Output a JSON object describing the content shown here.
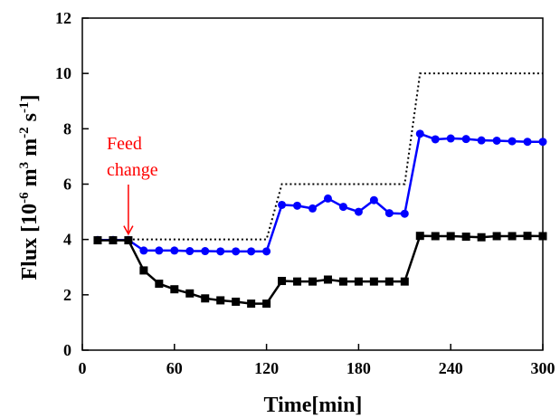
{
  "chart_data": {
    "type": "line",
    "xlabel": "Time[min]",
    "ylabel": {
      "prefix": "Flux [10",
      "exp1": "-6",
      "mid1": " m",
      "exp2": "3",
      "mid2": " m",
      "exp3": "-2",
      "mid3": " s",
      "exp4": "-1",
      "suffix": "]"
    },
    "xlim": [
      0,
      300
    ],
    "ylim": [
      0,
      12
    ],
    "xticks": [
      "0",
      "60",
      "120",
      "180",
      "240",
      "300"
    ],
    "yticks": [
      "0",
      "2",
      "4",
      "6",
      "8",
      "10",
      "12"
    ],
    "grid": false,
    "legend": "none",
    "annotations": [
      {
        "lines": [
          "Feed",
          "change"
        ],
        "color": "#ff0000",
        "arrow_to": {
          "x": 30,
          "y": 4.0
        }
      }
    ],
    "series": [
      {
        "style": "dotted",
        "color": "#000000",
        "marker": "none",
        "x": [
          30,
          120,
          130,
          210,
          220,
          300
        ],
        "y": [
          4,
          4,
          6,
          6,
          10,
          10
        ]
      },
      {
        "style": "solid",
        "color": "#0000ff",
        "marker": "circle",
        "x": [
          10,
          20,
          30,
          40,
          50,
          60,
          70,
          80,
          90,
          100,
          110,
          120,
          130,
          140,
          150,
          160,
          170,
          180,
          190,
          200,
          210,
          220,
          230,
          240,
          250,
          260,
          270,
          280,
          290,
          300
        ],
        "y": [
          3.98,
          3.98,
          3.98,
          3.6,
          3.6,
          3.6,
          3.58,
          3.58,
          3.57,
          3.57,
          3.57,
          3.57,
          5.25,
          5.22,
          5.12,
          5.48,
          5.18,
          5.0,
          5.42,
          4.95,
          4.93,
          7.82,
          7.62,
          7.65,
          7.63,
          7.58,
          7.57,
          7.55,
          7.53,
          7.53
        ]
      },
      {
        "style": "solid",
        "color": "#000000",
        "marker": "square",
        "x": [
          10,
          20,
          30,
          40,
          50,
          60,
          70,
          80,
          90,
          100,
          110,
          120,
          130,
          140,
          150,
          160,
          170,
          180,
          190,
          200,
          210,
          220,
          230,
          240,
          250,
          260,
          270,
          280,
          290,
          300
        ],
        "y": [
          3.97,
          3.97,
          3.97,
          2.88,
          2.4,
          2.2,
          2.05,
          1.87,
          1.8,
          1.75,
          1.68,
          1.68,
          2.5,
          2.48,
          2.48,
          2.55,
          2.48,
          2.48,
          2.48,
          2.48,
          2.48,
          4.13,
          4.12,
          4.12,
          4.1,
          4.08,
          4.12,
          4.12,
          4.13,
          4.12
        ]
      }
    ]
  }
}
